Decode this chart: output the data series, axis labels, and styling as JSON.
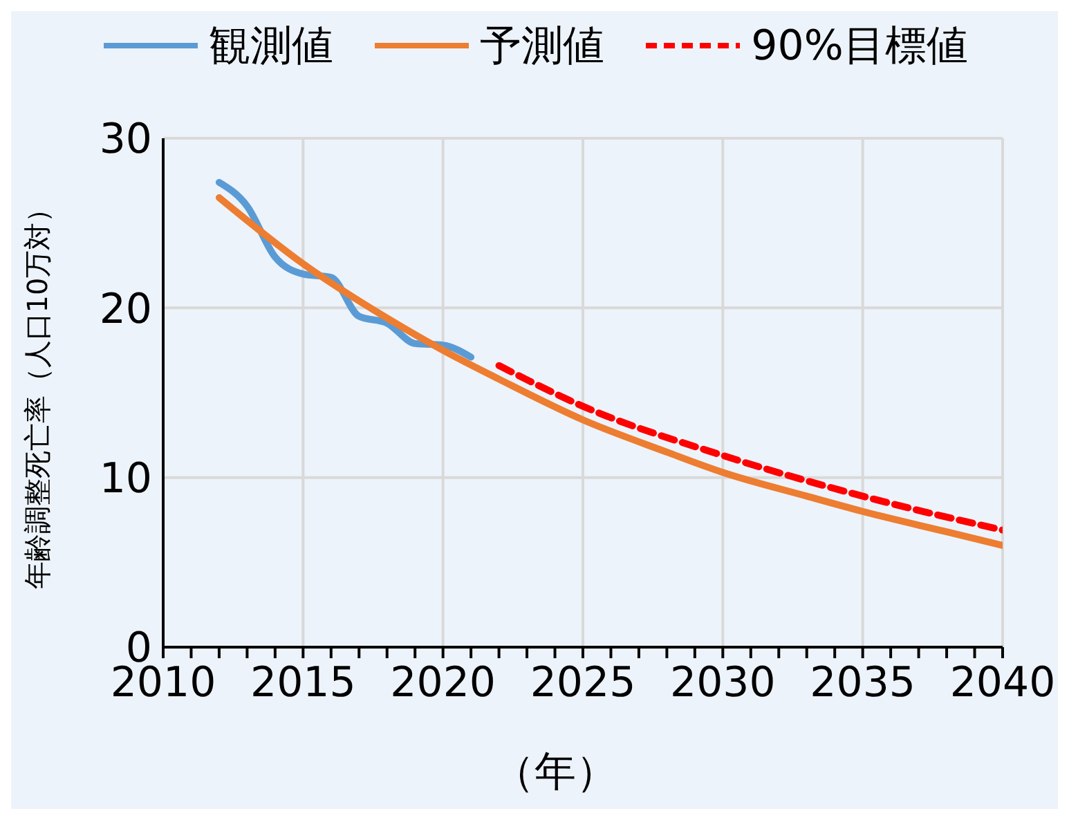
{
  "chart_data": {
    "type": "line",
    "xlabel": "（年）",
    "ylabel": "年齢調整死亡率（人口10万対）",
    "xlim": [
      2010,
      2040
    ],
    "ylim": [
      0,
      30
    ],
    "yticks": [
      0,
      10,
      20,
      30
    ],
    "xticks": [
      2010,
      {
        "value": 2011,
        "label": null
      },
      {
        "value": 2012,
        "label": null
      },
      {
        "value": 2013,
        "label": null
      },
      {
        "value": 2014,
        "label": null
      },
      2015,
      {
        "value": 2016,
        "label": null
      },
      {
        "value": 2017,
        "label": null
      },
      {
        "value": 2018,
        "label": null
      },
      {
        "value": 2019,
        "label": null
      },
      2020,
      {
        "value": 2021,
        "label": null
      },
      {
        "value": 2022,
        "label": null
      },
      {
        "value": 2023,
        "label": null
      },
      {
        "value": 2024,
        "label": null
      },
      2025,
      {
        "value": 2026,
        "label": null
      },
      {
        "value": 2027,
        "label": null
      },
      {
        "value": 2028,
        "label": null
      },
      {
        "value": 2029,
        "label": null
      },
      2030,
      {
        "value": 2031,
        "label": null
      },
      {
        "value": 2032,
        "label": null
      },
      {
        "value": 2033,
        "label": null
      },
      {
        "value": 2034,
        "label": null
      },
      2035,
      {
        "value": 2036,
        "label": null
      },
      {
        "value": 2037,
        "label": null
      },
      {
        "value": 2038,
        "label": null
      },
      {
        "value": 2039,
        "label": null
      },
      2040
    ],
    "grid": true,
    "legend": "top",
    "marker": "none",
    "series": [
      {
        "name": "観測値",
        "color": "#5b9bd5",
        "line_style": "solid",
        "x": [
          2012,
          2013,
          2014,
          2015,
          2016,
          2017,
          2018,
          2019,
          2020,
          2021
        ],
        "values": [
          27.4,
          26.0,
          23.0,
          22.0,
          21.8,
          19.5,
          19.1,
          17.9,
          17.8,
          17.1
        ]
      },
      {
        "name": "予測値",
        "color": "#ed7d31",
        "line_style": "solid",
        "x": [
          2012,
          2015,
          2018,
          2020,
          2022,
          2025,
          2028,
          2030,
          2033,
          2035,
          2038,
          2040
        ],
        "values": [
          26.5,
          22.6,
          19.4,
          17.5,
          15.8,
          13.4,
          11.5,
          10.3,
          8.9,
          8.0,
          6.8,
          6.0
        ]
      },
      {
        "name": "90%目標値",
        "color": "#ff0000",
        "line_style": "dashed",
        "x": [
          2022,
          2025,
          2030,
          2035,
          2040
        ],
        "values": [
          16.6,
          14.2,
          11.3,
          8.9,
          6.9
        ]
      }
    ]
  }
}
